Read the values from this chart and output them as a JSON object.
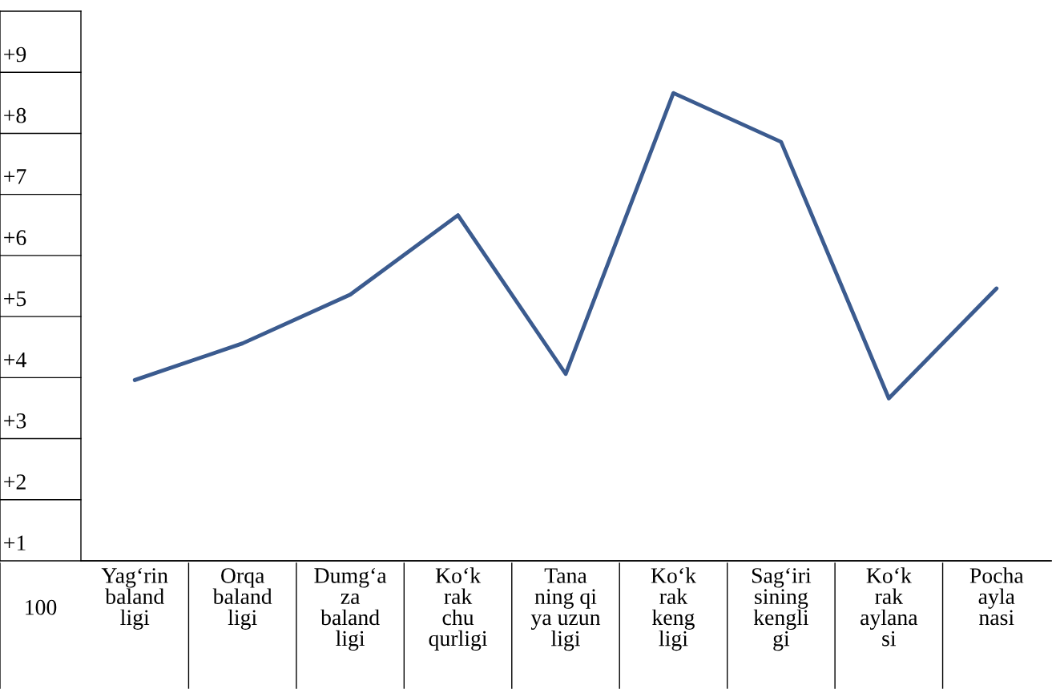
{
  "chart_data": {
    "type": "line",
    "categories": [
      "Yag‘rin\nbaland\nligi",
      "Orqa\nbaland\nligi",
      "Dumg‘a\nza\nbaland\nligi",
      "Ko‘k\nrak\nchu\nqurligi",
      "Tana\nning qi\nya uzun\nligi",
      "Ko‘k\nrak\nkeng\nligi",
      "Sag‘iri\nsining\nkengli\ngi",
      "Ko‘k\nrak\naylana\nsi",
      "Pocha\nayla\nnasi"
    ],
    "series": [
      {
        "color": "#3b5b8f",
        "values": [
          3.7,
          4.3,
          5.1,
          6.4,
          3.8,
          8.4,
          7.6,
          3.4,
          5.2
        ]
      }
    ],
    "ylim": [
      0.74,
      9.74
    ],
    "yticks": [
      {
        "value": 1,
        "label": "+1"
      },
      {
        "value": 2,
        "label": "+2"
      },
      {
        "value": 3,
        "label": "+3"
      },
      {
        "value": 4,
        "label": "+4"
      },
      {
        "value": 5,
        "label": "+5"
      },
      {
        "value": 6,
        "label": "+6"
      },
      {
        "value": 7,
        "label": "+7"
      },
      {
        "value": 8,
        "label": "+8"
      },
      {
        "value": 9,
        "label": "+9"
      }
    ],
    "annotations": [
      "100"
    ],
    "grid": false,
    "legend": false
  }
}
